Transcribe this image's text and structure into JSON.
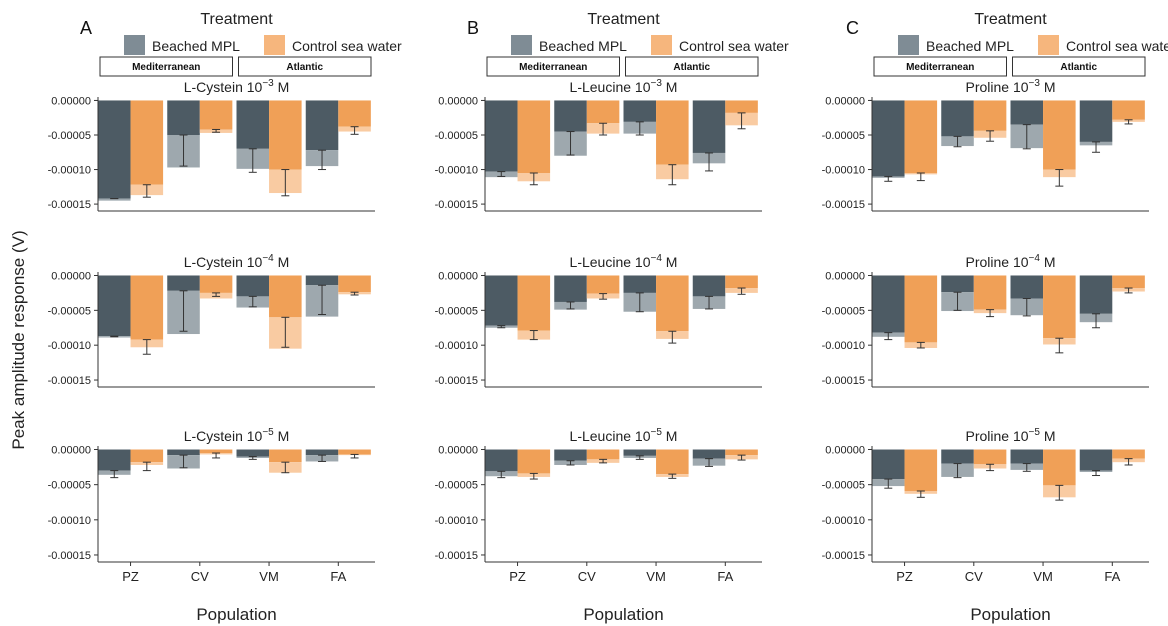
{
  "y_axis_label": "Peak amplitude response (V)",
  "x_axis_label": "Population",
  "legend_title": "Treatment",
  "legend_items": [
    {
      "label": "Beached MPL",
      "color": "#7f8c95"
    },
    {
      "label": "Control sea water",
      "color": "#f6b67d"
    }
  ],
  "strip_labels": [
    "Mediterranean",
    "Atlantic"
  ],
  "colors": {
    "beached_dark": "#4d5b64",
    "beached_light": "#9ea8ae",
    "control_dark": "#f0a057",
    "control_light": "#f9cba2",
    "error_bar": "#333333"
  },
  "chart_data": [
    {
      "panel_label": "A",
      "type": "bar",
      "categories": [
        "PZ",
        "CV",
        "VM",
        "FA"
      ],
      "ylim": [
        -0.00016,
        5e-06
      ],
      "yticks": [
        0.0,
        -5e-05,
        -0.0001,
        -0.00015
      ],
      "ytick_labels": [
        "0.00000",
        "-0.00005",
        "-0.00010",
        "-0.00015"
      ],
      "facets": [
        {
          "title": "L-Cystein",
          "exponent": "−3",
          "unit": "M",
          "beached": [
            [
              -0.000142,
              -0.000145,
              -0.000142
            ],
            [
              -5e-05,
              -9.7e-05,
              -9.5e-05
            ],
            [
              -7e-05,
              -9.9e-05,
              -0.000104
            ],
            [
              -7.2e-05,
              -9.5e-05,
              -0.0001
            ]
          ],
          "control": [
            [
              -0.000122,
              -0.000137,
              -0.00014
            ],
            [
              -4.2e-05,
              -4.7e-05,
              -4.6e-05
            ],
            [
              -0.0001,
              -0.000134,
              -0.000138
            ],
            [
              -3.8e-05,
              -4.5e-05,
              -4.9e-05
            ]
          ]
        },
        {
          "title": "L-Cystein",
          "exponent": "−4",
          "unit": "M",
          "beached": [
            [
              -8.7e-05,
              -8.9e-05,
              -8.8e-05
            ],
            [
              -2.2e-05,
              -8.4e-05,
              -8e-05
            ],
            [
              -3e-05,
              -4.6e-05,
              -4.5e-05
            ],
            [
              -1.4e-05,
              -5.9e-05,
              -5.6e-05
            ]
          ],
          "control": [
            [
              -9.2e-05,
              -0.000103,
              -0.000113
            ],
            [
              -2.5e-05,
              -3.3e-05,
              -3e-05
            ],
            [
              -6e-05,
              -0.000105,
              -0.000103
            ],
            [
              -2.4e-05,
              -2.7e-05,
              -2.8e-05
            ]
          ]
        },
        {
          "title": "L-Cystein",
          "exponent": "−5",
          "unit": "M",
          "beached": [
            [
              -3e-05,
              -3.6e-05,
              -4e-05
            ],
            [
              -8e-06,
              -2.7e-05,
              -2.6e-05
            ],
            [
              -1e-05,
              -1.2e-05,
              -1.4e-05
            ],
            [
              -8e-06,
              -1.7e-05,
              -1.7e-05
            ]
          ],
          "control": [
            [
              -1.8e-05,
              -2.2e-05,
              -3e-05
            ],
            [
              -5e-06,
              -7e-06,
              -1.2e-05
            ],
            [
              -1.8e-05,
              -3.3e-05,
              -3.3e-05
            ],
            [
              -7e-06,
              -8e-06,
              -1.2e-05
            ]
          ]
        }
      ]
    },
    {
      "panel_label": "B",
      "type": "bar",
      "categories": [
        "PZ",
        "CV",
        "VM",
        "FA"
      ],
      "ylim": [
        -0.00016,
        5e-06
      ],
      "yticks": [
        0.0,
        -5e-05,
        -0.0001,
        -0.00015
      ],
      "ytick_labels": [
        "0.00000",
        "-0.00005",
        "-0.00010",
        "-0.00015"
      ],
      "facets": [
        {
          "title": "L-Leucine",
          "exponent": "−3",
          "unit": "M",
          "beached": [
            [
              -0.000103,
              -0.000111,
              -0.00011
            ],
            [
              -4.5e-05,
              -8e-05,
              -7.9e-05
            ],
            [
              -3.1e-05,
              -4.8e-05,
              -5e-05
            ],
            [
              -7.6e-05,
              -9.1e-05,
              -0.000102
            ]
          ],
          "control": [
            [
              -0.000105,
              -0.000117,
              -0.000122
            ],
            [
              -3.3e-05,
              -4.8e-05,
              -5e-05
            ],
            [
              -9.3e-05,
              -0.000114,
              -0.000122
            ],
            [
              -1.8e-05,
              -3.6e-05,
              -4.1e-05
            ]
          ]
        },
        {
          "title": "L-Leucine",
          "exponent": "−4",
          "unit": "M",
          "beached": [
            [
              -7.2e-05,
              -7.5e-05,
              -7.5e-05
            ],
            [
              -3.8e-05,
              -4.9e-05,
              -4.8e-05
            ],
            [
              -2.5e-05,
              -5.2e-05,
              -5.2e-05
            ],
            [
              -3e-05,
              -4.8e-05,
              -4.8e-05
            ]
          ],
          "control": [
            [
              -7.9e-05,
              -9.2e-05,
              -9.2e-05
            ],
            [
              -2.6e-05,
              -3.3e-05,
              -3.4e-05
            ],
            [
              -8e-05,
              -9.1e-05,
              -9.7e-05
            ],
            [
              -1.8e-05,
              -2.5e-05,
              -2.7e-05
            ]
          ]
        },
        {
          "title": "L-Leucine",
          "exponent": "−5",
          "unit": "M",
          "beached": [
            [
              -3.1e-05,
              -3.8e-05,
              -4e-05
            ],
            [
              -1.6e-05,
              -2.2e-05,
              -2.2e-05
            ],
            [
              -9e-06,
              -1.2e-05,
              -1.4e-05
            ],
            [
              -1.3e-05,
              -2.3e-05,
              -2.4e-05
            ]
          ],
          "control": [
            [
              -3.4e-05,
              -3.9e-05,
              -4.2e-05
            ],
            [
              -1.4e-05,
              -1.9e-05,
              -1.9e-05
            ],
            [
              -3.5e-05,
              -3.9e-05,
              -4.1e-05
            ],
            [
              -8e-06,
              -1.4e-05,
              -1.5e-05
            ]
          ]
        }
      ]
    },
    {
      "panel_label": "C",
      "type": "bar",
      "categories": [
        "PZ",
        "CV",
        "VM",
        "FA"
      ],
      "ylim": [
        -0.00016,
        5e-06
      ],
      "yticks": [
        0.0,
        -5e-05,
        -0.0001,
        -0.00015
      ],
      "ytick_labels": [
        "0.00000",
        "-0.00005",
        "-0.00010",
        "-0.00015"
      ],
      "facets": [
        {
          "title": "Proline",
          "exponent": "−3",
          "unit": "M",
          "beached": [
            [
              -0.00011,
              -0.000112,
              -0.000117
            ],
            [
              -5.2e-05,
              -6.6e-05,
              -6.7e-05
            ],
            [
              -3.5e-05,
              -6.9e-05,
              -7e-05
            ],
            [
              -6e-05,
              -6.5e-05,
              -7.5e-05
            ]
          ],
          "control": [
            [
              -0.000105,
              -0.000107,
              -0.000116
            ],
            [
              -4.4e-05,
              -5.4e-05,
              -5.9e-05
            ],
            [
              -0.0001,
              -0.000111,
              -0.000124
            ],
            [
              -2.8e-05,
              -3.1e-05,
              -3.4e-05
            ]
          ]
        },
        {
          "title": "Proline",
          "exponent": "−4",
          "unit": "M",
          "beached": [
            [
              -8.2e-05,
              -8.8e-05,
              -9.2e-05
            ],
            [
              -2.4e-05,
              -5.1e-05,
              -5e-05
            ],
            [
              -3.3e-05,
              -5.7e-05,
              -5.8e-05
            ],
            [
              -5.5e-05,
              -6.7e-05,
              -7.5e-05
            ]
          ],
          "control": [
            [
              -9.6e-05,
              -0.000104,
              -0.000104
            ],
            [
              -4.9e-05,
              -5.4e-05,
              -5.9e-05
            ],
            [
              -9e-05,
              -9.9e-05,
              -0.000111
            ],
            [
              -1.8e-05,
              -2.3e-05,
              -2.5e-05
            ]
          ]
        },
        {
          "title": "Proline",
          "exponent": "−5",
          "unit": "M",
          "beached": [
            [
              -4.2e-05,
              -5.2e-05,
              -5.5e-05
            ],
            [
              -2e-05,
              -3.9e-05,
              -4e-05
            ],
            [
              -2e-05,
              -2.9e-05,
              -3.1e-05
            ],
            [
              -3e-05,
              -3.2e-05,
              -3.7e-05
            ]
          ],
          "control": [
            [
              -5.9e-05,
              -6.3e-05,
              -6.8e-05
            ],
            [
              -2.1e-05,
              -2.7e-05,
              -3e-05
            ],
            [
              -5.1e-05,
              -6.8e-05,
              -7.2e-05
            ],
            [
              -1.3e-05,
              -1.8e-05,
              -2.2e-05
            ]
          ]
        }
      ]
    }
  ]
}
